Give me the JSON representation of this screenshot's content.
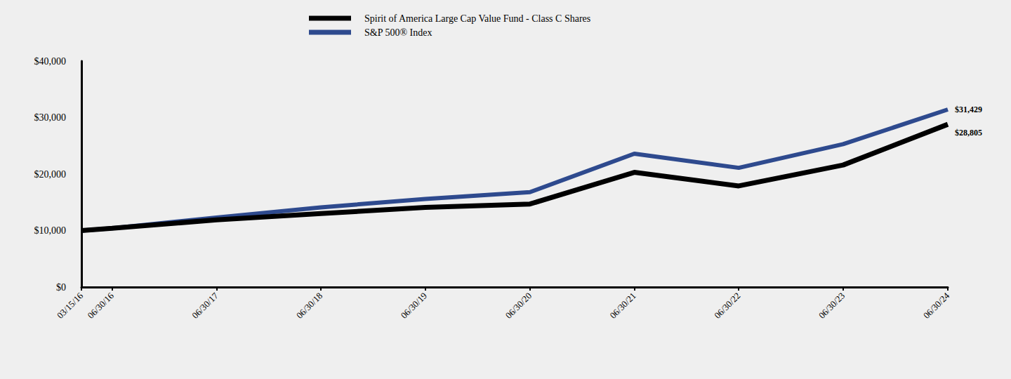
{
  "chart_data": {
    "type": "line",
    "x": [
      "03/15/16",
      "06/30/16",
      "06/30/17",
      "06/30/18",
      "06/30/19",
      "06/30/20",
      "06/30/21",
      "06/30/22",
      "06/30/23",
      "06/30/24"
    ],
    "xlim": [
      "03/15/16",
      "06/30/24"
    ],
    "xticks": [
      "03/15/16",
      "06/30/16",
      "06/30/17",
      "06/30/18",
      "06/30/19",
      "06/30/20",
      "06/30/21",
      "06/30/22",
      "06/30/23",
      "06/30/24"
    ],
    "series": [
      {
        "name": "Spirit of America Large Cap Value Fund - Class C Shares",
        "color": "#000000",
        "values": [
          10000,
          10400,
          11900,
          13000,
          14100,
          14700,
          20300,
          17900,
          21600,
          28805
        ],
        "value_labels": [
          null,
          null,
          null,
          null,
          null,
          null,
          null,
          null,
          null,
          "$28,805"
        ]
      },
      {
        "name": "S&P 500® Index",
        "color": "#2e4a8e",
        "values": [
          10000,
          10400,
          12300,
          14100,
          15600,
          16800,
          23600,
          21100,
          25300,
          31429
        ],
        "value_labels": [
          null,
          null,
          null,
          null,
          null,
          null,
          null,
          null,
          null,
          "$31,429"
        ]
      }
    ],
    "ylim": [
      0,
      40000
    ],
    "yticks": [
      {
        "value": 0,
        "label": "$0"
      },
      {
        "value": 10000,
        "label": "$10,000"
      },
      {
        "value": 20000,
        "label": "$20,000"
      },
      {
        "value": 30000,
        "label": "$30,000"
      },
      {
        "value": 40000,
        "label": "$40,000"
      }
    ],
    "grid": false,
    "legend": "top",
    "data_labels": true
  }
}
